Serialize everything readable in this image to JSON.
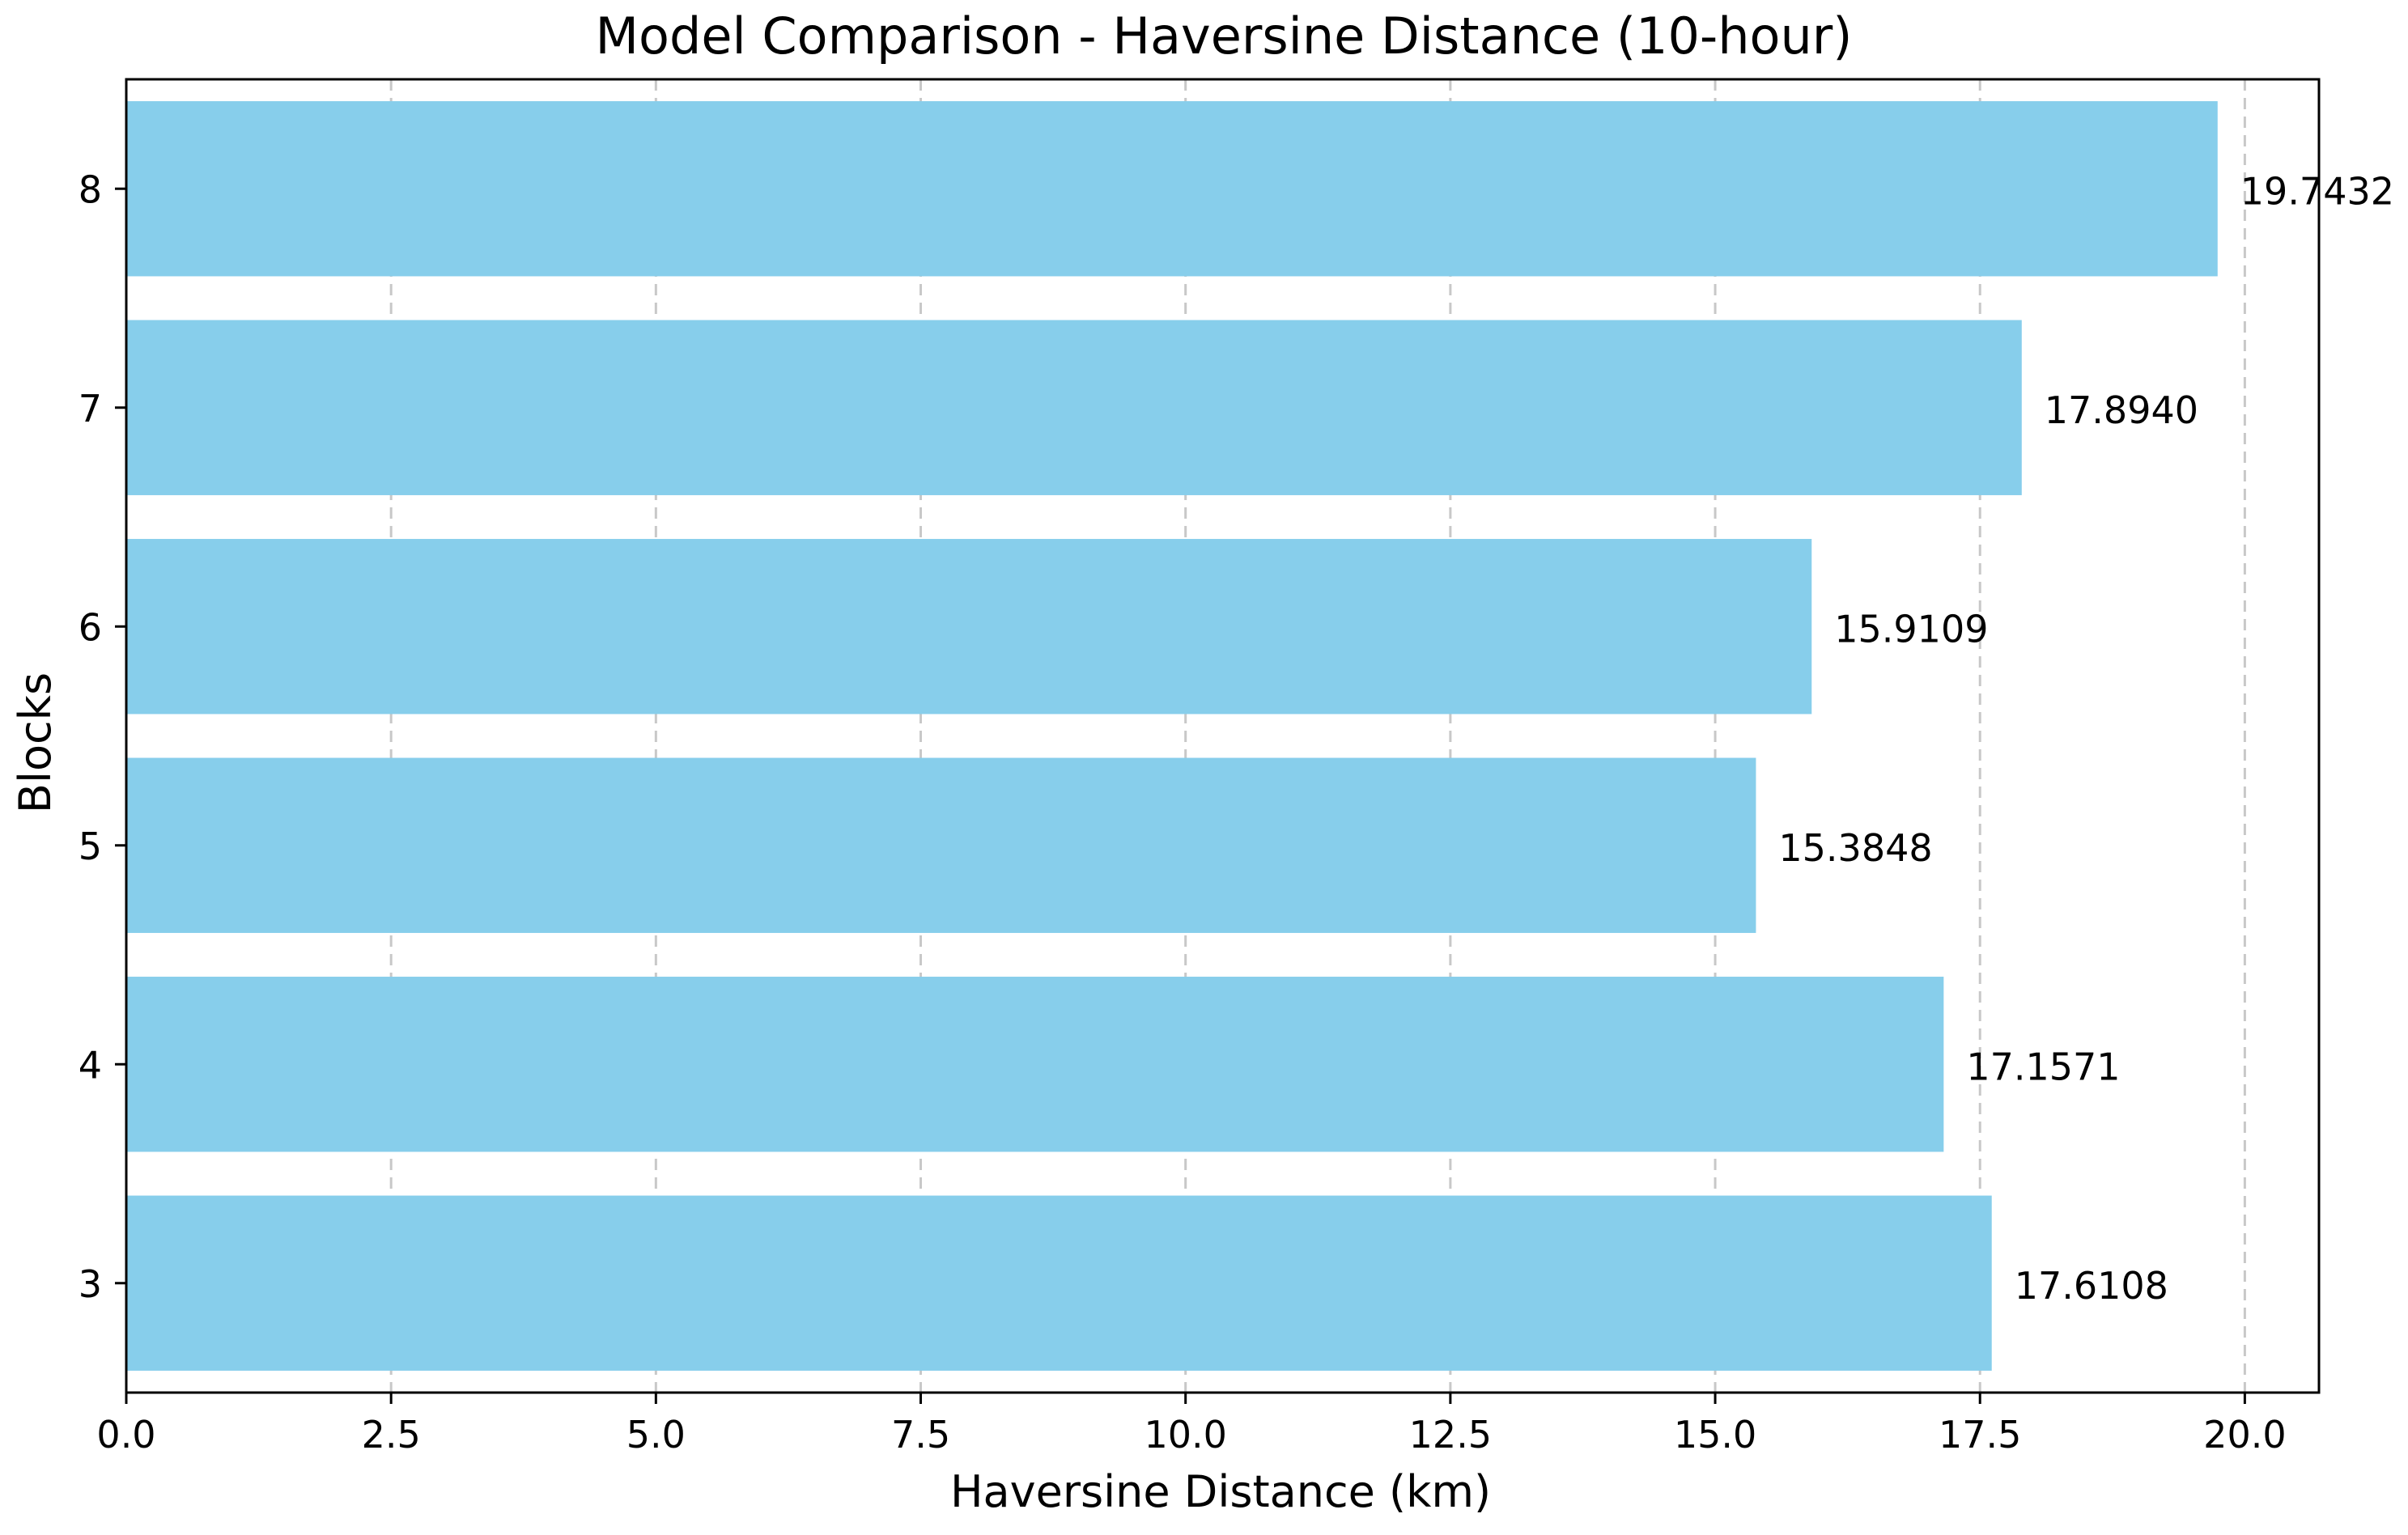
{
  "chart_data": {
    "type": "bar",
    "orientation": "horizontal",
    "title": "Model Comparison - Haversine Distance (10-hour)",
    "xlabel": "Haversine Distance (km)",
    "ylabel": "Blocks",
    "categories": [
      "3",
      "4",
      "5",
      "6",
      "7",
      "8"
    ],
    "values": [
      17.6108,
      17.1571,
      15.3848,
      15.9109,
      17.894,
      19.7432
    ],
    "value_labels": [
      "17.6108",
      "17.1571",
      "15.3848",
      "15.9109",
      "17.8940",
      "19.7432"
    ],
    "xlim": [
      0,
      20.7
    ],
    "x_ticks": [
      0,
      2.5,
      5,
      7.5,
      10,
      12.5,
      15,
      17.5,
      20
    ],
    "x_tick_labels": [
      "0.0",
      "2.5",
      "5.0",
      "7.5",
      "10.0",
      "12.5",
      "15.0",
      "17.5",
      "20.0"
    ],
    "grid": "x-axis dashed",
    "legend": "none",
    "bar_color": "#87CEEB",
    "grid_color": "#c8c8c8"
  }
}
